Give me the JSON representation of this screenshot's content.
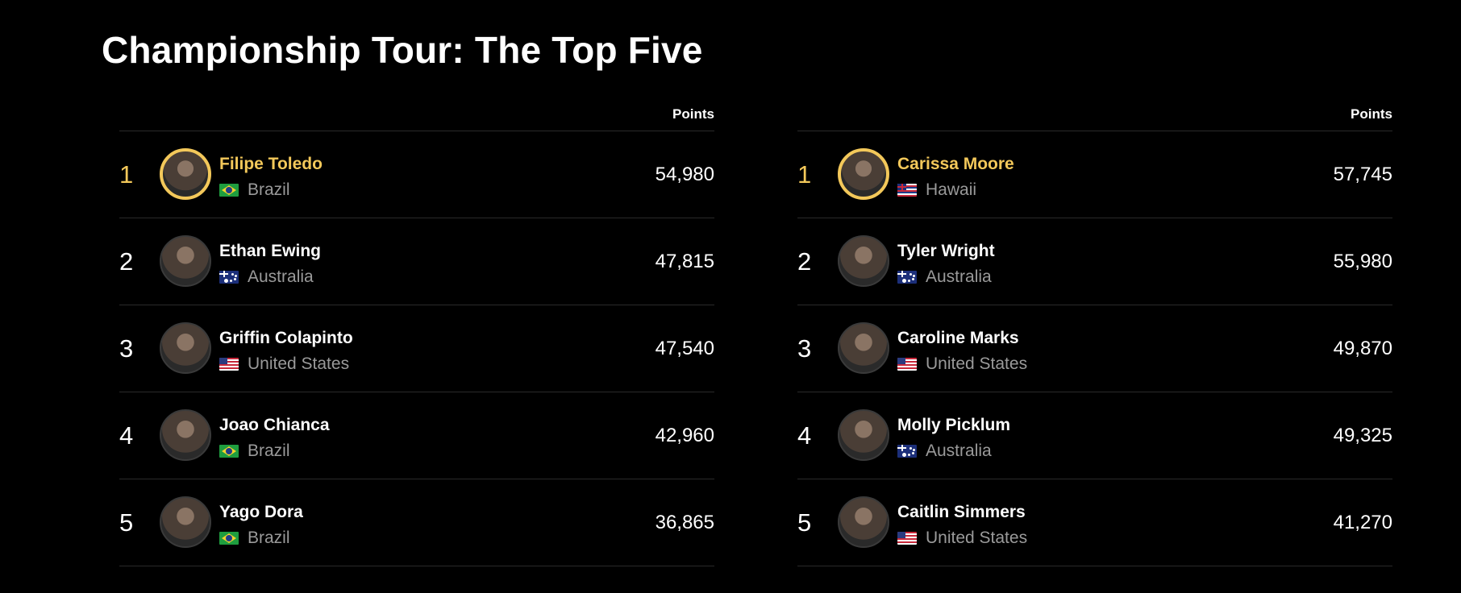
{
  "page": {
    "title": "Championship Tour: The Top Five"
  },
  "colors": {
    "background": "#000000",
    "accent": "#f3c85a",
    "muted": "#9a9a9a",
    "divider": "#2a2a2a"
  },
  "men": {
    "points_label": "Points",
    "rows": [
      {
        "rank": "1",
        "name": "Filipe Toledo",
        "country": "Brazil",
        "flag": "flag-brazil-icon",
        "points": "54,980"
      },
      {
        "rank": "2",
        "name": "Ethan Ewing",
        "country": "Australia",
        "flag": "flag-australia-icon",
        "points": "47,815"
      },
      {
        "rank": "3",
        "name": "Griffin Colapinto",
        "country": "United States",
        "flag": "flag-usa-icon",
        "points": "47,540"
      },
      {
        "rank": "4",
        "name": "Joao Chianca",
        "country": "Brazil",
        "flag": "flag-brazil-icon",
        "points": "42,960"
      },
      {
        "rank": "5",
        "name": "Yago Dora",
        "country": "Brazil",
        "flag": "flag-brazil-icon",
        "points": "36,865"
      }
    ]
  },
  "women": {
    "points_label": "Points",
    "rows": [
      {
        "rank": "1",
        "name": "Carissa Moore",
        "country": "Hawaii",
        "flag": "flag-hawaii-icon",
        "points": "57,745"
      },
      {
        "rank": "2",
        "name": "Tyler Wright",
        "country": "Australia",
        "flag": "flag-australia-icon",
        "points": "55,980"
      },
      {
        "rank": "3",
        "name": "Caroline Marks",
        "country": "United States",
        "flag": "flag-usa-icon",
        "points": "49,870"
      },
      {
        "rank": "4",
        "name": "Molly Picklum",
        "country": "Australia",
        "flag": "flag-australia-icon",
        "points": "49,325"
      },
      {
        "rank": "5",
        "name": "Caitlin Simmers",
        "country": "United States",
        "flag": "flag-usa-icon",
        "points": "41,270"
      }
    ]
  }
}
